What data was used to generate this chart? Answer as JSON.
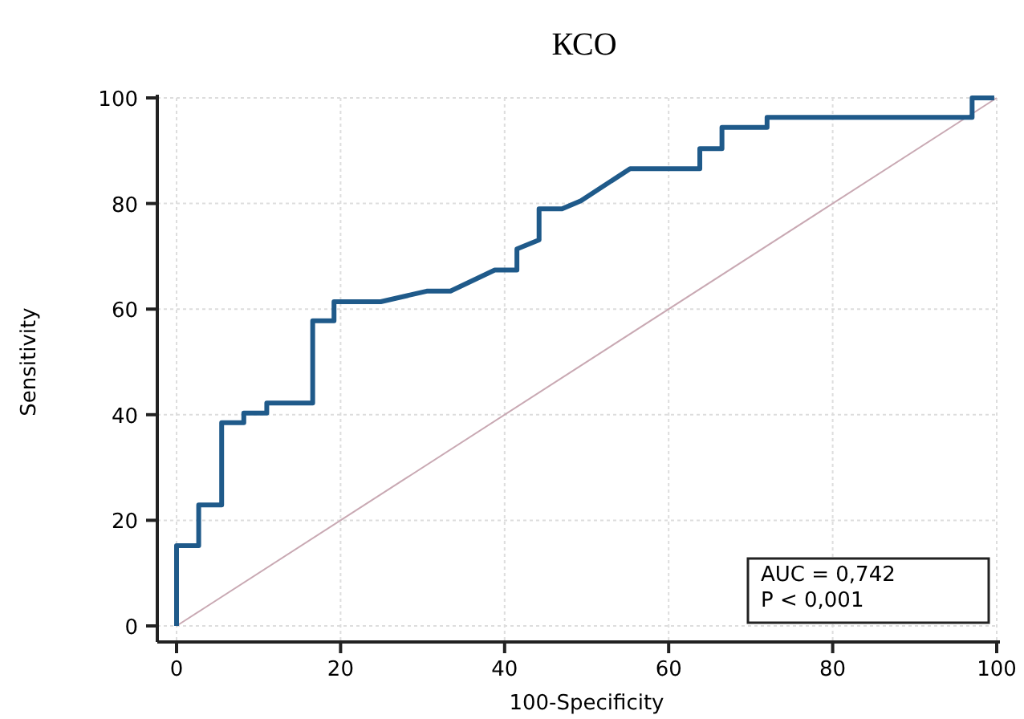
{
  "chart_data": {
    "type": "line",
    "title": "КСО",
    "xlabel": "100-Specificity",
    "ylabel": "Sensitivity",
    "xlim": [
      0,
      100
    ],
    "ylim": [
      0,
      100
    ],
    "xticks": [
      0,
      20,
      40,
      60,
      80,
      100
    ],
    "yticks": [
      0,
      20,
      40,
      60,
      80,
      100
    ],
    "grid": true,
    "marker": "none",
    "line_style": "solid",
    "series": [
      {
        "color": "#1f5a8a",
        "x": [
          0,
          0,
          2.7,
          2.7,
          5.5,
          5.5,
          8.2,
          8.2,
          11,
          11,
          16.6,
          16.6,
          19.2,
          19.2,
          24.9,
          30.5,
          33.4,
          38.8,
          41.5,
          41.5,
          44.2,
          44.2,
          47,
          49.3,
          55.3,
          63.8,
          63.8,
          66.5,
          66.5,
          72,
          72,
          97,
          97,
          99.7
        ],
        "values": [
          0,
          15.2,
          15.2,
          22.9,
          22.9,
          38.5,
          38.5,
          40.3,
          40.3,
          42.2,
          42.2,
          57.8,
          57.8,
          61.4,
          61.4,
          63.4,
          63.4,
          67.4,
          67.4,
          71.4,
          73.1,
          79,
          79,
          80.5,
          86.6,
          86.6,
          90.4,
          90.4,
          94.4,
          94.4,
          96.3,
          96.3,
          100,
          100
        ]
      },
      {
        "color": "#c9a9b3",
        "x": [
          0,
          100
        ],
        "values": [
          0,
          100
        ]
      }
    ],
    "annotations": [
      "AUC = 0,742",
      "P < 0,001"
    ]
  }
}
